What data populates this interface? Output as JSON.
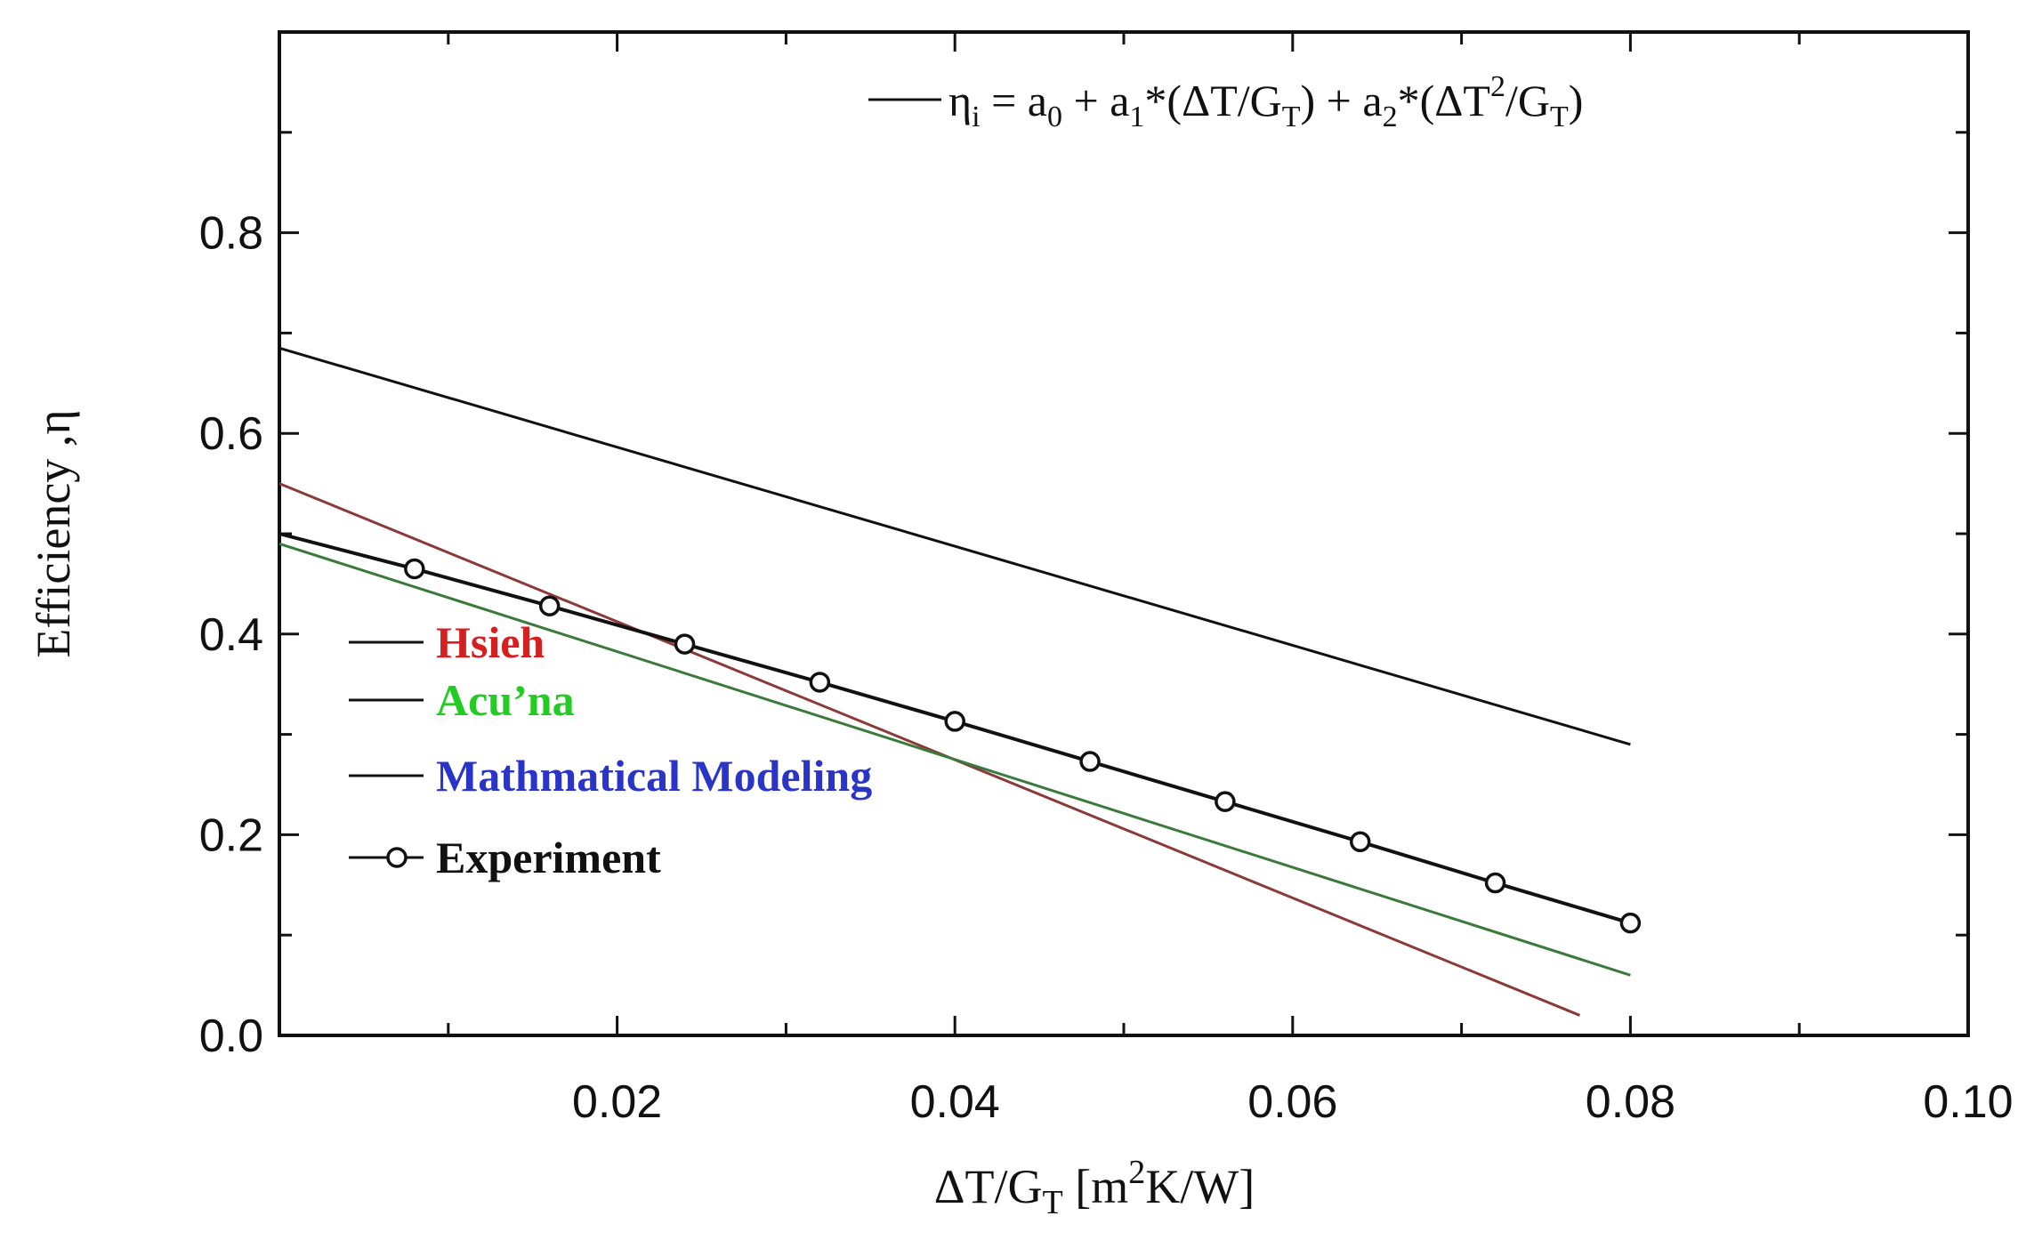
{
  "chart_data": {
    "type": "line",
    "title": "",
    "xlabel": "ΔT/G_T [m²K/W]",
    "ylabel": "Efficiency ,η",
    "xlim": [
      0.0,
      0.1
    ],
    "ylim": [
      0.0,
      1.0
    ],
    "xticks": [
      0.02,
      0.04,
      0.06,
      0.08,
      0.1
    ],
    "xtick_labels": [
      "0.02",
      "0.04",
      "0.06",
      "0.08",
      "0.10"
    ],
    "yticks": [
      0.0,
      0.2,
      0.4,
      0.6,
      0.8
    ],
    "ytick_labels": [
      "0.0",
      "0.2",
      "0.4",
      "0.6",
      "0.8"
    ],
    "grid": false,
    "legend_position": "left",
    "annotation": {
      "text": "ηi = a0 + a1*(ΔT/GT) + a2*(ΔT2/GT)",
      "position": "top-right",
      "line_color": "#111111"
    },
    "series": [
      {
        "name": "Hsieh",
        "color": "#8b3a3a",
        "label_color": "#d42020",
        "marker": "none",
        "x": [
          0.0,
          0.077
        ],
        "y": [
          0.55,
          0.02
        ]
      },
      {
        "name": "Acu’na",
        "color": "#3a7a3a",
        "label_color": "#22cc22",
        "marker": "none",
        "x": [
          0.0,
          0.08
        ],
        "y": [
          0.49,
          0.06
        ]
      },
      {
        "name": "Mathmatical Modeling",
        "color": "#111111",
        "label_color": "#2a35c8",
        "marker": "none",
        "x": [
          0.0,
          0.08
        ],
        "y": [
          0.685,
          0.29
        ]
      },
      {
        "name": "Experiment",
        "color": "#111111",
        "label_color": "#111111",
        "marker": "circle",
        "line_x": [
          0.0,
          0.008,
          0.016,
          0.024,
          0.032,
          0.04,
          0.048,
          0.056,
          0.064,
          0.072,
          0.08
        ],
        "line_y": [
          0.5,
          0.465,
          0.428,
          0.39,
          0.352,
          0.313,
          0.273,
          0.233,
          0.193,
          0.152,
          0.112
        ],
        "x": [
          0.008,
          0.016,
          0.024,
          0.032,
          0.04,
          0.048,
          0.056,
          0.064,
          0.072,
          0.08
        ],
        "y": [
          0.465,
          0.428,
          0.39,
          0.352,
          0.313,
          0.273,
          0.233,
          0.193,
          0.152,
          0.112
        ]
      }
    ]
  }
}
